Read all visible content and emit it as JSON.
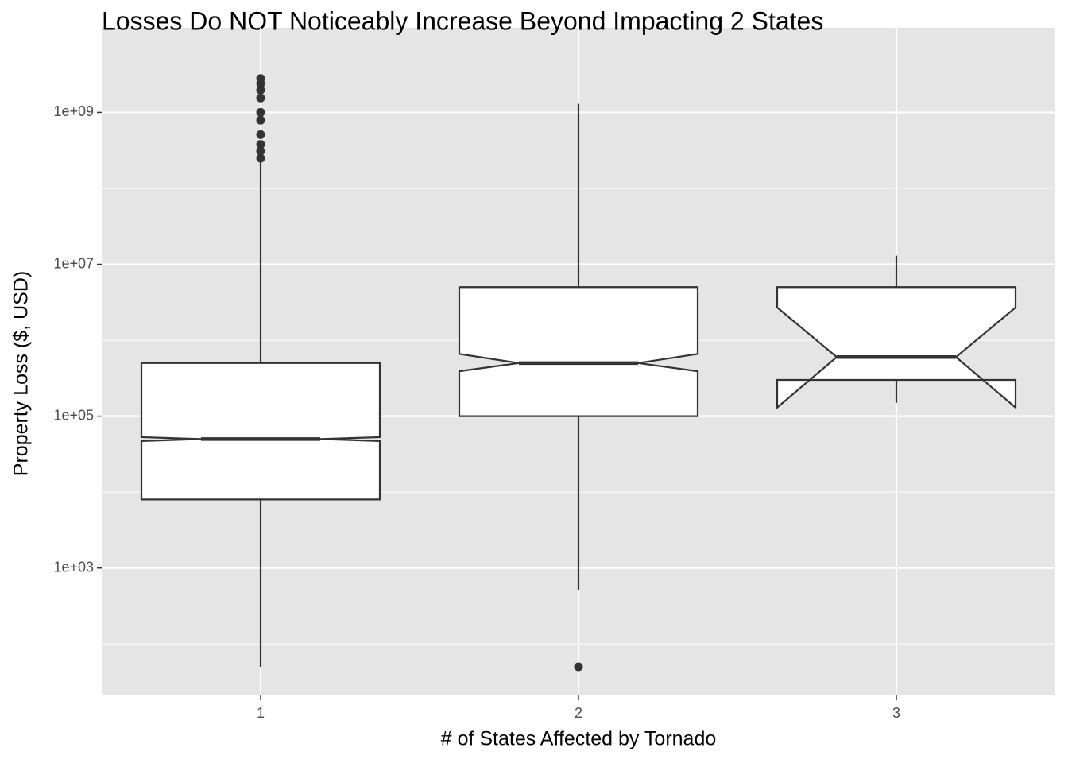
{
  "chart_data": {
    "type": "boxplot",
    "title": "Losses Do NOT Noticeably Increase Beyond Impacting 2 States",
    "x_label": "# of States Affected by Tornado",
    "y_label": "Property Loss ($, USD)",
    "categories": [
      "1",
      "2",
      "3"
    ],
    "boxes": [
      {
        "min": 50,
        "q1": 8000,
        "notch_low": 47000,
        "median": 50000,
        "notch_high": 53000,
        "q3": 500000,
        "max": 250000000,
        "outliers": [
          250000000,
          310000000,
          380000000,
          510000000,
          790000000,
          1000000000,
          1550000000,
          1970000000,
          2400000000,
          2800000000
        ]
      },
      {
        "min": 520,
        "q1": 100000,
        "notch_low": 390000,
        "median": 500000,
        "notch_high": 660000,
        "q3": 5000000,
        "max": 1300000000,
        "outliers": [
          50
        ]
      },
      {
        "min": 150000,
        "q1": 300000,
        "notch_low": 130000,
        "median": 600000,
        "notch_high": 2700000,
        "q3": 5000000,
        "max": 13000000,
        "outliers": []
      }
    ],
    "box_fill": "#ffffff",
    "box_stroke": "#333333",
    "panel_color": "#e5e5e5",
    "y_log": true,
    "grid": true,
    "ylim": [
      21,
      13000000000
    ],
    "yticks": [
      {
        "value": 1000,
        "label": "1e+03"
      },
      {
        "value": 100000,
        "label": "1e+05"
      },
      {
        "value": 10000000,
        "label": "1e+07"
      },
      {
        "value": 1000000000,
        "label": "1e+09"
      }
    ],
    "minor_yticks": [
      100,
      10000,
      1000000,
      100000000
    ]
  }
}
